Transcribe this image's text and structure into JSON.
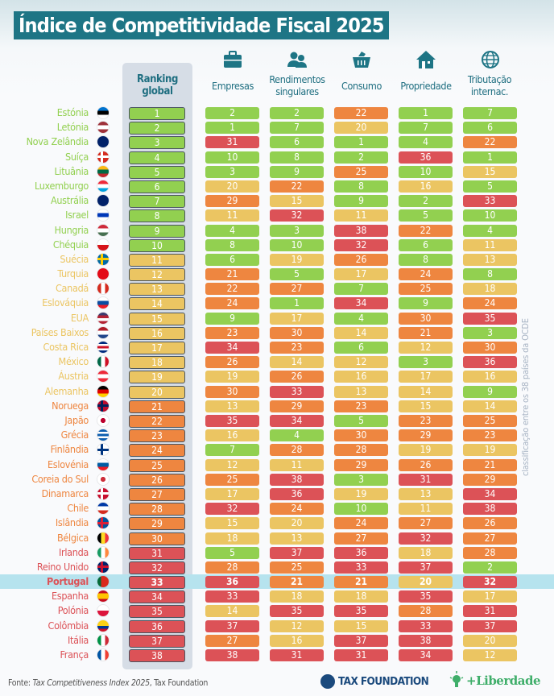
{
  "title": "Índice de Competitividade Fiscal 2025",
  "colors": {
    "green": "#92d050",
    "yellow": "#ebc562",
    "orange": "#ee8640",
    "red": "#dc5257",
    "title_bg": "#1e7585",
    "highlight": "#b6e3ee"
  },
  "color_scale": [
    {
      "max": 10,
      "color": "green"
    },
    {
      "max": 20,
      "color": "yellow"
    },
    {
      "max": 30,
      "color": "orange"
    },
    {
      "max": 38,
      "color": "red"
    }
  ],
  "chart_data": {
    "type": "table",
    "title": "Índice de Competitividade Fiscal 2025",
    "highlighted_row": "Portugal",
    "columns": [
      {
        "label": "Ranking global",
        "icon": ""
      },
      {
        "label": "Empresas",
        "icon": "briefcase-icon"
      },
      {
        "label": "Rendimentos singulares",
        "icon": "people-icon"
      },
      {
        "label": "Consumo",
        "icon": "basket-icon"
      },
      {
        "label": "Propriedade",
        "icon": "house-icon"
      },
      {
        "label": "Tributação internac.",
        "icon": "globe-icon"
      }
    ],
    "rows": [
      {
        "country": "Estónia",
        "rank": 1,
        "values": [
          2,
          2,
          22,
          1,
          7
        ],
        "flag": {
          "dir": "h",
          "c": [
            "#0072ce",
            "#000000",
            "#ffffff"
          ]
        }
      },
      {
        "country": "Letónia",
        "rank": 2,
        "values": [
          1,
          7,
          20,
          7,
          6
        ],
        "flag": {
          "dir": "h",
          "c": [
            "#9e3039",
            "#ffffff",
            "#9e3039"
          ]
        }
      },
      {
        "country": "Nova Zelândia",
        "rank": 3,
        "values": [
          31,
          6,
          1,
          4,
          22
        ],
        "flag": {
          "dir": "h",
          "c": [
            "#012169",
            "#012169"
          ]
        }
      },
      {
        "country": "Suíça",
        "rank": 4,
        "values": [
          10,
          8,
          2,
          36,
          1
        ],
        "flag": {
          "dir": "cross",
          "c": [
            "#d52b1e",
            "#ffffff"
          ]
        }
      },
      {
        "country": "Lituânia",
        "rank": 5,
        "values": [
          3,
          9,
          25,
          10,
          15
        ],
        "flag": {
          "dir": "h",
          "c": [
            "#fdb913",
            "#006a44",
            "#c1272d"
          ]
        }
      },
      {
        "country": "Luxemburgo",
        "rank": 6,
        "values": [
          20,
          22,
          8,
          16,
          5
        ],
        "flag": {
          "dir": "h",
          "c": [
            "#ed2939",
            "#ffffff",
            "#00a1de"
          ]
        }
      },
      {
        "country": "Austrália",
        "rank": 7,
        "values": [
          29,
          15,
          9,
          2,
          33
        ],
        "flag": {
          "dir": "h",
          "c": [
            "#012169",
            "#012169"
          ]
        }
      },
      {
        "country": "Israel",
        "rank": 8,
        "values": [
          11,
          32,
          11,
          5,
          10
        ],
        "flag": {
          "dir": "h",
          "c": [
            "#ffffff",
            "#0038b8",
            "#ffffff"
          ]
        }
      },
      {
        "country": "Hungria",
        "rank": 9,
        "values": [
          4,
          3,
          38,
          22,
          4
        ],
        "flag": {
          "dir": "h",
          "c": [
            "#ce2939",
            "#ffffff",
            "#477050"
          ]
        }
      },
      {
        "country": "Chéquia",
        "rank": 10,
        "values": [
          8,
          10,
          32,
          6,
          11
        ],
        "flag": {
          "dir": "h",
          "c": [
            "#ffffff",
            "#d7141a"
          ]
        }
      },
      {
        "country": "Suécia",
        "rank": 11,
        "values": [
          6,
          19,
          26,
          8,
          13
        ],
        "flag": {
          "dir": "cross",
          "c": [
            "#006aa7",
            "#fecc00"
          ]
        }
      },
      {
        "country": "Turquia",
        "rank": 12,
        "values": [
          21,
          5,
          17,
          24,
          8
        ],
        "flag": {
          "dir": "h",
          "c": [
            "#e30a17",
            "#e30a17"
          ]
        }
      },
      {
        "country": "Canadá",
        "rank": 13,
        "values": [
          22,
          27,
          7,
          25,
          18
        ],
        "flag": {
          "dir": "v",
          "c": [
            "#d52b1e",
            "#ffffff",
            "#d52b1e"
          ]
        }
      },
      {
        "country": "Eslováquia",
        "rank": 14,
        "values": [
          24,
          1,
          34,
          9,
          24
        ],
        "flag": {
          "dir": "h",
          "c": [
            "#ffffff",
            "#0b4ea2",
            "#ee1c25"
          ]
        }
      },
      {
        "country": "EUA",
        "rank": 15,
        "values": [
          9,
          17,
          4,
          30,
          35
        ],
        "flag": {
          "dir": "h",
          "c": [
            "#3c3b6e",
            "#b22234",
            "#ffffff",
            "#b22234"
          ]
        }
      },
      {
        "country": "Países Baixos",
        "rank": 16,
        "values": [
          23,
          30,
          14,
          21,
          3
        ],
        "flag": {
          "dir": "h",
          "c": [
            "#ae1c28",
            "#ffffff",
            "#21468b"
          ]
        }
      },
      {
        "country": "Costa Rica",
        "rank": 17,
        "values": [
          34,
          23,
          6,
          12,
          30
        ],
        "flag": {
          "dir": "h",
          "c": [
            "#002b7f",
            "#ffffff",
            "#ce1126",
            "#ffffff",
            "#002b7f"
          ]
        }
      },
      {
        "country": "México",
        "rank": 18,
        "values": [
          26,
          14,
          12,
          3,
          36
        ],
        "flag": {
          "dir": "v",
          "c": [
            "#006847",
            "#ffffff",
            "#ce1126"
          ]
        }
      },
      {
        "country": "Áustria",
        "rank": 19,
        "values": [
          19,
          26,
          16,
          17,
          16
        ],
        "flag": {
          "dir": "h",
          "c": [
            "#ed2939",
            "#ffffff",
            "#ed2939"
          ]
        }
      },
      {
        "country": "Alemanha",
        "rank": 20,
        "values": [
          30,
          33,
          13,
          14,
          9
        ],
        "flag": {
          "dir": "h",
          "c": [
            "#000000",
            "#dd0000",
            "#ffce00"
          ]
        }
      },
      {
        "country": "Noruega",
        "rank": 21,
        "values": [
          13,
          29,
          23,
          15,
          14
        ],
        "flag": {
          "dir": "cross",
          "c": [
            "#ba0c2f",
            "#00205b"
          ]
        }
      },
      {
        "country": "Japão",
        "rank": 22,
        "values": [
          35,
          34,
          5,
          23,
          25
        ],
        "flag": {
          "dir": "dot",
          "c": [
            "#ffffff",
            "#bc002d"
          ]
        }
      },
      {
        "country": "Grécia",
        "rank": 23,
        "values": [
          16,
          4,
          30,
          29,
          23
        ],
        "flag": {
          "dir": "h",
          "c": [
            "#0d5eaf",
            "#ffffff",
            "#0d5eaf",
            "#ffffff",
            "#0d5eaf"
          ]
        }
      },
      {
        "country": "Finlândia",
        "rank": 24,
        "values": [
          7,
          28,
          28,
          19,
          19
        ],
        "flag": {
          "dir": "cross",
          "c": [
            "#ffffff",
            "#003580"
          ]
        }
      },
      {
        "country": "Eslovénia",
        "rank": 25,
        "values": [
          12,
          11,
          29,
          26,
          21
        ],
        "flag": {
          "dir": "h",
          "c": [
            "#ffffff",
            "#005da4",
            "#ed1c24"
          ]
        }
      },
      {
        "country": "Coreia do Sul",
        "rank": 26,
        "values": [
          25,
          38,
          3,
          31,
          29
        ],
        "flag": {
          "dir": "dot",
          "c": [
            "#ffffff",
            "#cd2e3a"
          ]
        }
      },
      {
        "country": "Dinamarca",
        "rank": 27,
        "values": [
          17,
          36,
          19,
          13,
          34
        ],
        "flag": {
          "dir": "cross",
          "c": [
            "#c8102e",
            "#ffffff"
          ]
        }
      },
      {
        "country": "Chile",
        "rank": 28,
        "values": [
          32,
          24,
          10,
          11,
          38
        ],
        "flag": {
          "dir": "h",
          "c": [
            "#0039a6",
            "#ffffff",
            "#d52b1e"
          ]
        }
      },
      {
        "country": "Islândia",
        "rank": 29,
        "values": [
          15,
          20,
          24,
          27,
          26
        ],
        "flag": {
          "dir": "cross",
          "c": [
            "#02529c",
            "#dc1e35"
          ]
        }
      },
      {
        "country": "Bélgica",
        "rank": 30,
        "values": [
          18,
          13,
          27,
          32,
          27
        ],
        "flag": {
          "dir": "v",
          "c": [
            "#000000",
            "#fdda24",
            "#ef3340"
          ]
        }
      },
      {
        "country": "Irlanda",
        "rank": 31,
        "values": [
          5,
          37,
          36,
          18,
          28
        ],
        "flag": {
          "dir": "v",
          "c": [
            "#169b62",
            "#ffffff",
            "#ff883e"
          ]
        }
      },
      {
        "country": "Reino Unido",
        "rank": 32,
        "values": [
          28,
          25,
          33,
          37,
          2
        ],
        "flag": {
          "dir": "cross",
          "c": [
            "#012169",
            "#c8102e"
          ]
        }
      },
      {
        "country": "Portugal",
        "rank": 33,
        "values": [
          36,
          21,
          21,
          20,
          32
        ],
        "flag": {
          "dir": "v",
          "c": [
            "#046a38",
            "#da291c",
            "#da291c"
          ]
        }
      },
      {
        "country": "Espanha",
        "rank": 34,
        "values": [
          33,
          18,
          18,
          35,
          17
        ],
        "flag": {
          "dir": "h",
          "c": [
            "#c60b1e",
            "#ffc400",
            "#ffc400",
            "#c60b1e"
          ]
        }
      },
      {
        "country": "Polónia",
        "rank": 35,
        "values": [
          14,
          35,
          35,
          28,
          31
        ],
        "flag": {
          "dir": "h",
          "c": [
            "#ffffff",
            "#dc143c"
          ]
        }
      },
      {
        "country": "Colômbia",
        "rank": 36,
        "values": [
          37,
          12,
          15,
          33,
          37
        ],
        "flag": {
          "dir": "h",
          "c": [
            "#fcd116",
            "#fcd116",
            "#003893",
            "#ce1126"
          ]
        }
      },
      {
        "country": "Itália",
        "rank": 37,
        "values": [
          27,
          16,
          37,
          38,
          20
        ],
        "flag": {
          "dir": "v",
          "c": [
            "#009246",
            "#ffffff",
            "#ce2b37"
          ]
        }
      },
      {
        "country": "França",
        "rank": 38,
        "values": [
          38,
          31,
          31,
          34,
          12
        ],
        "flag": {
          "dir": "v",
          "c": [
            "#0055a4",
            "#ffffff",
            "#ef4135"
          ]
        }
      }
    ]
  },
  "side_note": "classificação entre os 38 países da OCDE",
  "footer": {
    "source_prefix": "Fonte: ",
    "source_title": "Tax Competitiveness Index 2025",
    "source_suffix": ", Tax Foundation",
    "logo_tax_foundation": "TAX FOUNDATION",
    "logo_liberdade": "+Liberdade"
  }
}
